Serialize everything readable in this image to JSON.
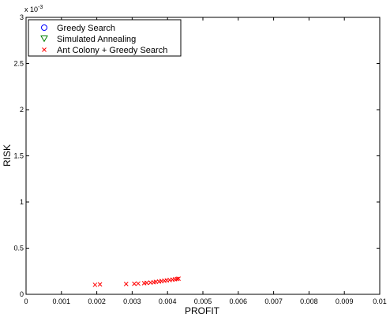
{
  "chart_data": {
    "type": "scatter",
    "xlabel": "PROFIT",
    "ylabel": "RISK",
    "y_multiplier": "x 10",
    "y_multiplier_exponent": "-3",
    "xlim": [
      0,
      0.01
    ],
    "ylim": [
      0,
      0.003
    ],
    "x_ticks": [
      "0",
      "0.001",
      "0.002",
      "0.003",
      "0.004",
      "0.005",
      "0.006",
      "0.007",
      "0.008",
      "0.009",
      "0.01"
    ],
    "y_ticks": [
      "0",
      "0.5",
      "1",
      "1.5",
      "2",
      "2.5",
      "3"
    ],
    "grid": false,
    "legend_position": "top-left",
    "series": [
      {
        "name": "Greedy Search",
        "marker": "circle",
        "color": "#0000ff",
        "points": []
      },
      {
        "name": "Simulated Annealing",
        "marker": "triangle-down",
        "color": "#008000",
        "points": []
      },
      {
        "name": "Ant Colony + Greedy Search",
        "marker": "x",
        "color": "#ff0000",
        "points": [
          [
            0.00195,
            0.000103
          ],
          [
            0.00209,
            0.000108
          ],
          [
            0.00283,
            0.000112
          ],
          [
            0.00306,
            0.000114
          ],
          [
            0.00317,
            0.000117
          ],
          [
            0.00334,
            0.000121
          ],
          [
            0.00341,
            0.000124
          ],
          [
            0.00352,
            0.000127
          ],
          [
            0.00361,
            0.000131
          ],
          [
            0.00367,
            0.000135
          ],
          [
            0.00376,
            0.000139
          ],
          [
            0.00383,
            0.000143
          ],
          [
            0.00391,
            0.000147
          ],
          [
            0.00398,
            0.000151
          ],
          [
            0.00406,
            0.000155
          ],
          [
            0.00414,
            0.000159
          ],
          [
            0.00421,
            0.000163
          ],
          [
            0.00427,
            0.000167
          ],
          [
            0.00431,
            0.00017
          ]
        ]
      }
    ]
  }
}
